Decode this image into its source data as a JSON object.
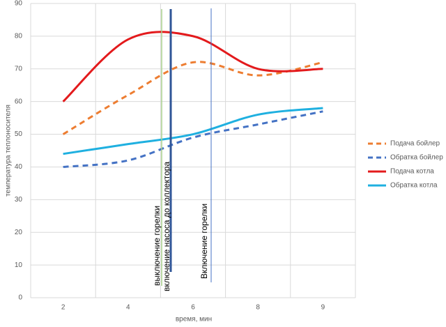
{
  "chart_data": {
    "type": "line",
    "x_label": "время, мин",
    "y_label": "температура теплоносителя",
    "categories": [
      "2",
      "4",
      "6",
      "8",
      "9"
    ],
    "series": [
      {
        "name": "Подача бойлер",
        "color": "#ed7d31",
        "dash": true,
        "values": [
          50,
          62,
          72,
          68,
          72
        ]
      },
      {
        "name": "Обратка бойлер",
        "color": "#4472c4",
        "dash": true,
        "values": [
          40,
          42,
          49,
          53,
          57
        ]
      },
      {
        "name": "Подача котла",
        "color": "#e31a1c",
        "dash": false,
        "values": [
          60,
          79,
          80,
          70,
          70
        ]
      },
      {
        "name": "Обратка котла",
        "color": "#1fb0e0",
        "dash": false,
        "values": [
          44,
          47,
          50,
          56,
          58
        ]
      }
    ],
    "annotations": [
      "выключение горелки",
      "включение насоса до коллектора",
      "Включение горелки"
    ],
    "ylim": [
      0,
      90
    ],
    "yticks": [
      0,
      10,
      20,
      30,
      40,
      50,
      60,
      70,
      80,
      90
    ],
    "grid": true,
    "legend": "right"
  }
}
